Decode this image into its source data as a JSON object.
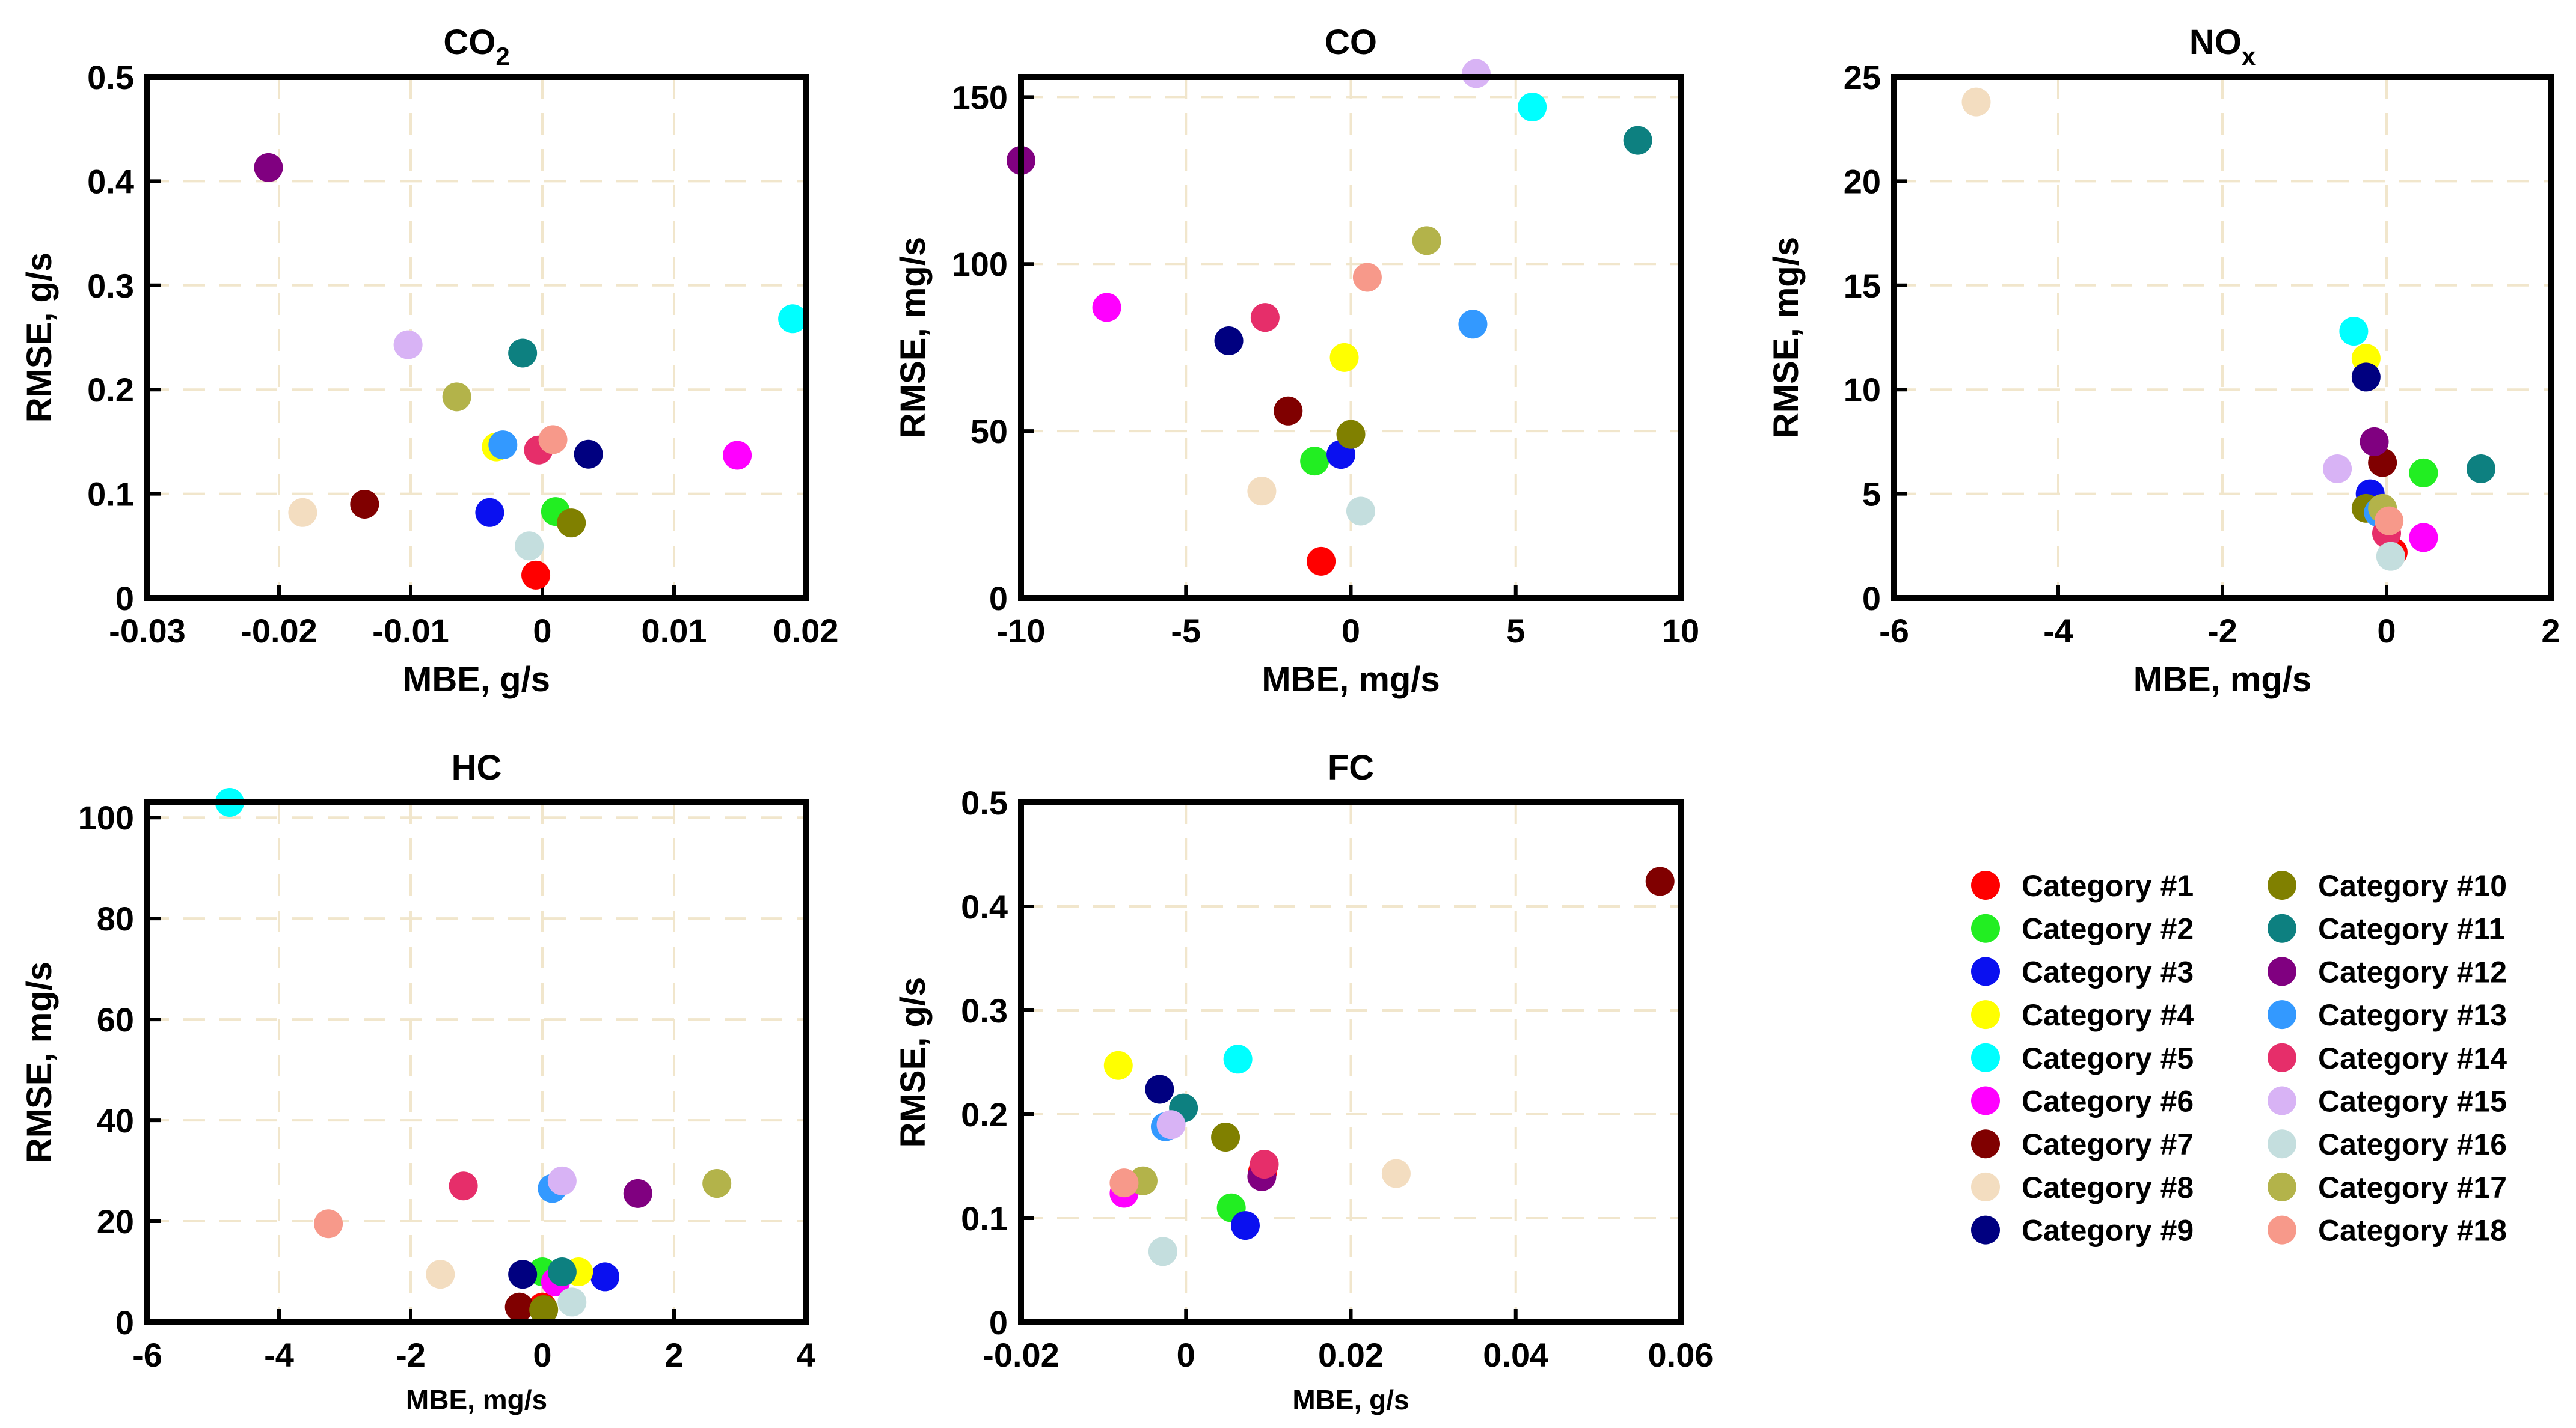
{
  "figure": {
    "categories": [
      "Category #1",
      "Category #2",
      "Category #3",
      "Category #4",
      "Category #5",
      "Category #6",
      "Category #7",
      "Category #8",
      "Category #9",
      "Category #10",
      "Category #11",
      "Category #12",
      "Category #13",
      "Category #14",
      "Category #15",
      "Category #16",
      "Category #17",
      "Category #18"
    ],
    "colors": [
      "#ff0000",
      "#22ee22",
      "#0a10f0",
      "#ffff00",
      "#00ffff",
      "#ff00ff",
      "#800000",
      "#f3ddc0",
      "#000080",
      "#808000",
      "#0d8080",
      "#800080",
      "#3399ff",
      "#e62e6a",
      "#d8b3f5",
      "#c4dede",
      "#b3b34a",
      "#f7998a"
    ]
  },
  "chart_data": [
    {
      "type": "scatter",
      "title": "CO",
      "title_sub": "2",
      "xlabel": "MBE, g/s",
      "ylabel": "RMSE, g/s",
      "xlim": [
        -0.03,
        0.02
      ],
      "ylim": [
        0,
        0.5
      ],
      "xticks": [
        -0.03,
        -0.02,
        -0.01,
        0,
        0.01,
        0.02
      ],
      "xtick_labels": [
        "-0.03",
        "-0.02",
        "-0.01",
        "0",
        "0.01",
        "0.02"
      ],
      "yticks": [
        0,
        0.1,
        0.2,
        0.3,
        0.4,
        0.5
      ],
      "ytick_labels": [
        "0",
        "0.1",
        "0.2",
        "0.3",
        "0.4",
        "0.5"
      ],
      "points": [
        {
          "category": 1,
          "x": -0.0005,
          "y": 0.022
        },
        {
          "category": 2,
          "x": 0.001,
          "y": 0.083
        },
        {
          "category": 3,
          "x": -0.004,
          "y": 0.082
        },
        {
          "category": 4,
          "x": -0.0035,
          "y": 0.145
        },
        {
          "category": 5,
          "x": 0.019,
          "y": 0.268
        },
        {
          "category": 6,
          "x": 0.0148,
          "y": 0.137
        },
        {
          "category": 7,
          "x": -0.0135,
          "y": 0.09
        },
        {
          "category": 8,
          "x": -0.0182,
          "y": 0.082
        },
        {
          "category": 9,
          "x": 0.0035,
          "y": 0.138
        },
        {
          "category": 10,
          "x": 0.0022,
          "y": 0.072
        },
        {
          "category": 11,
          "x": -0.0015,
          "y": 0.235
        },
        {
          "category": 12,
          "x": -0.0208,
          "y": 0.413
        },
        {
          "category": 13,
          "x": -0.003,
          "y": 0.147
        },
        {
          "category": 14,
          "x": -0.0003,
          "y": 0.142
        },
        {
          "category": 15,
          "x": -0.0102,
          "y": 0.243
        },
        {
          "category": 16,
          "x": -0.001,
          "y": 0.05
        },
        {
          "category": 17,
          "x": -0.0065,
          "y": 0.193
        },
        {
          "category": 18,
          "x": 0.0008,
          "y": 0.152
        }
      ]
    },
    {
      "type": "scatter",
      "title": "CO",
      "title_sub": "",
      "xlabel": "MBE, mg/s",
      "ylabel": "RMSE, mg/s",
      "xlim": [
        -10,
        10
      ],
      "ylim": [
        0,
        156
      ],
      "xticks": [
        -10,
        -5,
        0,
        5,
        10
      ],
      "xtick_labels": [
        "-10",
        "-5",
        "0",
        "5",
        "10"
      ],
      "yticks": [
        0,
        50,
        100,
        150
      ],
      "ytick_labels": [
        "0",
        "50",
        "100",
        "150"
      ],
      "points": [
        {
          "category": 1,
          "x": -0.9,
          "y": 11
        },
        {
          "category": 2,
          "x": -1.1,
          "y": 41
        },
        {
          "category": 3,
          "x": -0.3,
          "y": 43
        },
        {
          "category": 4,
          "x": -0.2,
          "y": 72
        },
        {
          "category": 5,
          "x": 5.5,
          "y": 147
        },
        {
          "category": 6,
          "x": -7.4,
          "y": 87
        },
        {
          "category": 7,
          "x": -1.9,
          "y": 56
        },
        {
          "category": 8,
          "x": -2.7,
          "y": 32
        },
        {
          "category": 9,
          "x": -3.7,
          "y": 77
        },
        {
          "category": 10,
          "x": 0,
          "y": 49
        },
        {
          "category": 11,
          "x": 8.7,
          "y": 137
        },
        {
          "category": 12,
          "x": -10,
          "y": 131
        },
        {
          "category": 13,
          "x": 3.7,
          "y": 82
        },
        {
          "category": 14,
          "x": -2.6,
          "y": 84
        },
        {
          "category": 15,
          "x": 3.8,
          "y": 157
        },
        {
          "category": 16,
          "x": 0.3,
          "y": 26
        },
        {
          "category": 17,
          "x": 2.3,
          "y": 107
        },
        {
          "category": 18,
          "x": 0.5,
          "y": 96
        }
      ]
    },
    {
      "type": "scatter",
      "title": "NO",
      "title_sub": "x",
      "xlabel": "MBE, mg/s",
      "ylabel": "RMSE, mg/s",
      "xlim": [
        -6,
        2
      ],
      "ylim": [
        0,
        25
      ],
      "xticks": [
        -6,
        -4,
        -2,
        0,
        2
      ],
      "xtick_labels": [
        "-6",
        "-4",
        "-2",
        "0",
        "2"
      ],
      "yticks": [
        0,
        5,
        10,
        15,
        20,
        25
      ],
      "ytick_labels": [
        "0",
        "5",
        "10",
        "15",
        "20",
        "25"
      ],
      "points": [
        {
          "category": 1,
          "x": 0.08,
          "y": 2.2
        },
        {
          "category": 2,
          "x": 0.45,
          "y": 6
        },
        {
          "category": 3,
          "x": -0.2,
          "y": 5
        },
        {
          "category": 4,
          "x": -0.25,
          "y": 11.5
        },
        {
          "category": 5,
          "x": -0.4,
          "y": 12.8
        },
        {
          "category": 6,
          "x": 0.45,
          "y": 2.9
        },
        {
          "category": 7,
          "x": -0.05,
          "y": 6.5
        },
        {
          "category": 8,
          "x": -5,
          "y": 23.8
        },
        {
          "category": 9,
          "x": -0.25,
          "y": 10.6
        },
        {
          "category": 10,
          "x": -0.25,
          "y": 4.3
        },
        {
          "category": 11,
          "x": 1.15,
          "y": 6.2
        },
        {
          "category": 12,
          "x": -0.15,
          "y": 7.5
        },
        {
          "category": 13,
          "x": -0.1,
          "y": 4.1
        },
        {
          "category": 14,
          "x": 0,
          "y": 3.1
        },
        {
          "category": 15,
          "x": -0.6,
          "y": 6.2
        },
        {
          "category": 16,
          "x": 0.05,
          "y": 2
        },
        {
          "category": 17,
          "x": -0.05,
          "y": 4.3
        },
        {
          "category": 18,
          "x": 0.03,
          "y": 3.7
        }
      ]
    },
    {
      "type": "scatter",
      "title": "HC",
      "title_sub": "",
      "xlabel": "MBE, mg/s",
      "ylabel": "RMSE, mg/s",
      "xlim": [
        -6,
        4
      ],
      "ylim": [
        0,
        103
      ],
      "xticks": [
        -6,
        -4,
        -2,
        0,
        2,
        4
      ],
      "xtick_labels": [
        "-6",
        "-4",
        "-2",
        "0",
        "2",
        "4"
      ],
      "yticks": [
        0,
        20,
        40,
        60,
        80,
        100
      ],
      "ytick_labels": [
        "0",
        "20",
        "40",
        "60",
        "80",
        "100"
      ],
      "points": [
        {
          "category": 1,
          "x": 0,
          "y": 3
        },
        {
          "category": 2,
          "x": 0,
          "y": 10
        },
        {
          "category": 3,
          "x": 0.95,
          "y": 9
        },
        {
          "category": 4,
          "x": 0.55,
          "y": 10
        },
        {
          "category": 5,
          "x": -4.75,
          "y": 103
        },
        {
          "category": 6,
          "x": 0.2,
          "y": 8
        },
        {
          "category": 7,
          "x": -0.35,
          "y": 3
        },
        {
          "category": 8,
          "x": -1.55,
          "y": 9.5
        },
        {
          "category": 9,
          "x": -0.3,
          "y": 9.5
        },
        {
          "category": 10,
          "x": 0.02,
          "y": 2.5
        },
        {
          "category": 11,
          "x": 0.3,
          "y": 10
        },
        {
          "category": 12,
          "x": 1.45,
          "y": 25.5
        },
        {
          "category": 13,
          "x": 0.15,
          "y": 26.5
        },
        {
          "category": 14,
          "x": -1.2,
          "y": 27
        },
        {
          "category": 15,
          "x": 0.3,
          "y": 28
        },
        {
          "category": 16,
          "x": 0.45,
          "y": 4
        },
        {
          "category": 17,
          "x": 2.65,
          "y": 27.5
        },
        {
          "category": 18,
          "x": -3.25,
          "y": 19.5
        }
      ]
    },
    {
      "type": "scatter",
      "title": "FC",
      "title_sub": "",
      "xlabel": "MBE, g/s",
      "ylabel": "RMSE, g/s",
      "xlim": [
        -0.02,
        0.06
      ],
      "ylim": [
        0,
        0.5
      ],
      "xticks": [
        -0.02,
        0,
        0.02,
        0.04,
        0.06
      ],
      "xtick_labels": [
        "-0.02",
        "0",
        "0.02",
        "0.04",
        "0.06"
      ],
      "yticks": [
        0,
        0.1,
        0.2,
        0.3,
        0.4,
        0.5
      ],
      "ytick_labels": [
        "0",
        "0.1",
        "0.2",
        "0.3",
        "0.4",
        "0.5"
      ],
      "points": [
        {
          "category": 1,
          "x": 0.0093,
          "y": 0.145
        },
        {
          "category": 2,
          "x": 0.0055,
          "y": 0.11
        },
        {
          "category": 3,
          "x": 0.0072,
          "y": 0.093
        },
        {
          "category": 4,
          "x": -0.0082,
          "y": 0.247
        },
        {
          "category": 5,
          "x": 0.0063,
          "y": 0.253
        },
        {
          "category": 6,
          "x": -0.0075,
          "y": 0.124
        },
        {
          "category": 7,
          "x": 0.0575,
          "y": 0.424
        },
        {
          "category": 8,
          "x": 0.0255,
          "y": 0.143
        },
        {
          "category": 9,
          "x": -0.0032,
          "y": 0.224
        },
        {
          "category": 10,
          "x": 0.0048,
          "y": 0.178
        },
        {
          "category": 11,
          "x": -0.0003,
          "y": 0.206
        },
        {
          "category": 12,
          "x": 0.0092,
          "y": 0.14
        },
        {
          "category": 13,
          "x": -0.0025,
          "y": 0.188
        },
        {
          "category": 14,
          "x": 0.0095,
          "y": 0.152
        },
        {
          "category": 15,
          "x": -0.0018,
          "y": 0.19
        },
        {
          "category": 16,
          "x": -0.0028,
          "y": 0.068
        },
        {
          "category": 17,
          "x": -0.0052,
          "y": 0.136
        },
        {
          "category": 18,
          "x": -0.0075,
          "y": 0.134
        }
      ]
    }
  ]
}
